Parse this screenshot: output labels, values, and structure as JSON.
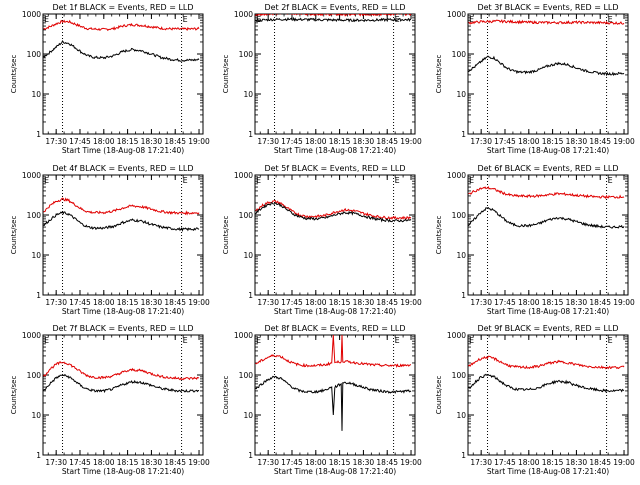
{
  "colors": {
    "events": "#000000",
    "lld": "#e00000",
    "axes": "#000000",
    "background": "#ffffff"
  },
  "shared": {
    "xlabel": "Start Time (18-Aug-08 17:21:40)",
    "ylabel": "Counts/sec",
    "yscale": "log",
    "ylim": [
      1,
      1000
    ],
    "ytick_labels": [
      "1",
      "10",
      "100",
      "1000"
    ],
    "xtick_labels": [
      "17:30",
      "17:45",
      "18:00",
      "18:15",
      "18:30",
      "18:45",
      "19:00"
    ],
    "xtick_minutes": [
      30,
      45,
      60,
      75,
      90,
      105,
      120
    ],
    "xlim_minutes": [
      21.7,
      122.5
    ],
    "dotted_markers_minutes": [
      34,
      109
    ],
    "corner_marks": [
      "E",
      "E"
    ]
  },
  "chart_data": [
    {
      "type": "line",
      "title": "Det 1f BLACK = Events, RED = LLD",
      "series": [
        {
          "name": "Events",
          "color": "#000000",
          "x": [
            22,
            26,
            30,
            34,
            38,
            42,
            46,
            50,
            54,
            60,
            66,
            72,
            78,
            84,
            90,
            96,
            102,
            108,
            114,
            120
          ],
          "y": [
            85,
            110,
            150,
            200,
            185,
            145,
            110,
            90,
            82,
            80,
            90,
            115,
            130,
            120,
            100,
            82,
            74,
            70,
            70,
            72
          ]
        },
        {
          "name": "LLD",
          "color": "#e00000",
          "x": [
            22,
            26,
            30,
            34,
            38,
            42,
            46,
            50,
            54,
            60,
            66,
            72,
            78,
            84,
            90,
            96,
            102,
            108,
            114,
            120
          ],
          "y": [
            420,
            480,
            570,
            650,
            640,
            560,
            480,
            430,
            420,
            410,
            430,
            500,
            540,
            520,
            480,
            440,
            425,
            420,
            420,
            430
          ]
        }
      ]
    },
    {
      "type": "line",
      "title": "Det 2f BLACK = Events, RED = LLD",
      "series": [
        {
          "name": "Events",
          "color": "#000000",
          "x": [
            22,
            30,
            40,
            50,
            60,
            70,
            80,
            90,
            100,
            110,
            120
          ],
          "y": [
            680,
            720,
            740,
            730,
            720,
            710,
            700,
            700,
            710,
            720,
            720
          ]
        },
        {
          "name": "LLD",
          "color": "#e00000",
          "x": [
            22,
            30,
            40,
            50,
            60,
            70,
            80,
            90,
            100,
            110,
            120
          ],
          "y": [
            950,
            1020,
            1050,
            1030,
            1000,
            980,
            970,
            980,
            990,
            1000,
            1000
          ]
        }
      ]
    },
    {
      "type": "line",
      "title": "Det 3f BLACK = Events, RED = LLD",
      "series": [
        {
          "name": "Events",
          "color": "#000000",
          "x": [
            22,
            26,
            30,
            34,
            38,
            42,
            46,
            50,
            54,
            60,
            66,
            72,
            78,
            84,
            90,
            96,
            102,
            108,
            114,
            120
          ],
          "y": [
            38,
            48,
            65,
            85,
            80,
            60,
            45,
            38,
            35,
            35,
            40,
            50,
            58,
            55,
            45,
            38,
            34,
            32,
            32,
            33
          ]
        },
        {
          "name": "LLD",
          "color": "#e00000",
          "x": [
            22,
            30,
            40,
            50,
            60,
            70,
            80,
            90,
            100,
            110,
            120
          ],
          "y": [
            600,
            640,
            660,
            640,
            620,
            610,
            610,
            620,
            610,
            600,
            590
          ]
        }
      ]
    },
    {
      "type": "line",
      "title": "Det 4f BLACK = Events, RED = LLD",
      "series": [
        {
          "name": "Events",
          "color": "#000000",
          "x": [
            22,
            26,
            30,
            34,
            38,
            42,
            46,
            50,
            54,
            60,
            66,
            72,
            78,
            84,
            90,
            96,
            102,
            108,
            114,
            120
          ],
          "y": [
            55,
            75,
            100,
            115,
            105,
            80,
            60,
            50,
            47,
            47,
            52,
            65,
            75,
            70,
            58,
            50,
            46,
            44,
            44,
            45
          ]
        },
        {
          "name": "LLD",
          "color": "#e00000",
          "x": [
            22,
            26,
            30,
            34,
            38,
            42,
            46,
            50,
            54,
            60,
            66,
            72,
            78,
            84,
            90,
            96,
            102,
            108,
            114,
            120
          ],
          "y": [
            120,
            170,
            220,
            250,
            230,
            180,
            140,
            120,
            115,
            115,
            125,
            150,
            170,
            160,
            140,
            122,
            115,
            112,
            112,
            115
          ]
        }
      ]
    },
    {
      "type": "line",
      "title": "Det 5f BLACK = Events, RED = LLD",
      "series": [
        {
          "name": "Events",
          "color": "#000000",
          "x": [
            22,
            26,
            30,
            34,
            38,
            42,
            46,
            50,
            54,
            60,
            66,
            72,
            78,
            84,
            90,
            96,
            102,
            108,
            114,
            120
          ],
          "y": [
            110,
            150,
            185,
            200,
            175,
            135,
            105,
            90,
            82,
            80,
            85,
            100,
            115,
            110,
            95,
            82,
            75,
            72,
            72,
            74
          ]
        },
        {
          "name": "LLD",
          "color": "#e00000",
          "x": [
            22,
            26,
            30,
            34,
            38,
            42,
            46,
            50,
            54,
            60,
            66,
            72,
            78,
            84,
            90,
            96,
            102,
            108,
            114,
            120
          ],
          "y": [
            125,
            170,
            205,
            220,
            195,
            150,
            118,
            100,
            92,
            92,
            98,
            118,
            135,
            128,
            110,
            95,
            88,
            85,
            85,
            86
          ]
        }
      ]
    },
    {
      "type": "line",
      "title": "Det 6f BLACK = Events, RED = LLD",
      "series": [
        {
          "name": "Events",
          "color": "#000000",
          "x": [
            22,
            26,
            30,
            34,
            38,
            42,
            46,
            50,
            54,
            60,
            66,
            72,
            78,
            84,
            90,
            96,
            102,
            108,
            114,
            120
          ],
          "y": [
            55,
            80,
            120,
            150,
            130,
            95,
            70,
            58,
            54,
            54,
            60,
            75,
            85,
            80,
            68,
            58,
            53,
            50,
            50,
            52
          ]
        },
        {
          "name": "LLD",
          "color": "#e00000",
          "x": [
            22,
            26,
            30,
            34,
            38,
            42,
            46,
            50,
            54,
            60,
            66,
            72,
            78,
            84,
            90,
            96,
            102,
            108,
            114,
            120
          ],
          "y": [
            330,
            400,
            460,
            480,
            440,
            380,
            330,
            305,
            298,
            295,
            300,
            320,
            340,
            330,
            310,
            295,
            285,
            282,
            282,
            285
          ]
        }
      ]
    },
    {
      "type": "line",
      "title": "Det 7f BLACK = Events, RED = LLD",
      "series": [
        {
          "name": "Events",
          "color": "#000000",
          "x": [
            22,
            26,
            30,
            34,
            38,
            42,
            46,
            50,
            54,
            60,
            66,
            72,
            78,
            84,
            90,
            96,
            102,
            108,
            114,
            120
          ],
          "y": [
            40,
            60,
            85,
            100,
            90,
            70,
            52,
            44,
            40,
            40,
            45,
            58,
            68,
            65,
            55,
            46,
            42,
            40,
            40,
            41
          ]
        },
        {
          "name": "LLD",
          "color": "#e00000",
          "x": [
            22,
            26,
            30,
            34,
            38,
            42,
            46,
            50,
            54,
            60,
            66,
            72,
            78,
            84,
            90,
            96,
            102,
            108,
            114,
            120
          ],
          "y": [
            90,
            140,
            185,
            210,
            190,
            150,
            115,
            95,
            88,
            86,
            95,
            118,
            135,
            128,
            108,
            92,
            85,
            82,
            82,
            84
          ]
        }
      ]
    },
    {
      "type": "line",
      "title": "Det 8f BLACK = Events, RED = LLD",
      "series": [
        {
          "name": "Events",
          "color": "#000000",
          "x": [
            22,
            26,
            30,
            34,
            38,
            42,
            46,
            50,
            54,
            60,
            66,
            70,
            71,
            72,
            76,
            76.5,
            77,
            82,
            88,
            94,
            100,
            106,
            112,
            118,
            120
          ],
          "y": [
            45,
            60,
            78,
            90,
            82,
            62,
            47,
            40,
            38,
            38,
            42,
            50,
            10,
            50,
            60,
            4,
            65,
            62,
            52,
            44,
            40,
            38,
            38,
            40,
            40
          ]
        },
        {
          "name": "LLD",
          "color": "#e00000",
          "x": [
            22,
            26,
            30,
            34,
            38,
            42,
            46,
            50,
            54,
            60,
            66,
            70,
            71,
            72,
            76,
            76.5,
            77,
            82,
            88,
            94,
            100,
            106,
            112,
            118,
            120
          ],
          "y": [
            190,
            230,
            280,
            310,
            290,
            230,
            195,
            178,
            172,
            172,
            180,
            200,
            1000,
            205,
            215,
            1000,
            220,
            210,
            195,
            182,
            175,
            172,
            172,
            178,
            180
          ]
        }
      ]
    },
    {
      "type": "line",
      "title": "Det 9f BLACK = Events, RED = LLD",
      "series": [
        {
          "name": "Events",
          "color": "#000000",
          "x": [
            22,
            26,
            30,
            34,
            38,
            42,
            46,
            50,
            54,
            60,
            66,
            72,
            78,
            84,
            90,
            96,
            102,
            108,
            114,
            120
          ],
          "y": [
            45,
            65,
            90,
            100,
            90,
            70,
            54,
            46,
            43,
            43,
            48,
            60,
            70,
            66,
            55,
            47,
            43,
            40,
            40,
            41
          ]
        },
        {
          "name": "LLD",
          "color": "#e00000",
          "x": [
            22,
            26,
            30,
            34,
            38,
            42,
            46,
            50,
            54,
            60,
            66,
            72,
            78,
            84,
            90,
            96,
            102,
            108,
            114,
            120
          ],
          "y": [
            160,
            210,
            260,
            280,
            260,
            215,
            180,
            162,
            156,
            155,
            165,
            195,
            215,
            205,
            182,
            165,
            158,
            155,
            155,
            158
          ]
        }
      ]
    }
  ]
}
